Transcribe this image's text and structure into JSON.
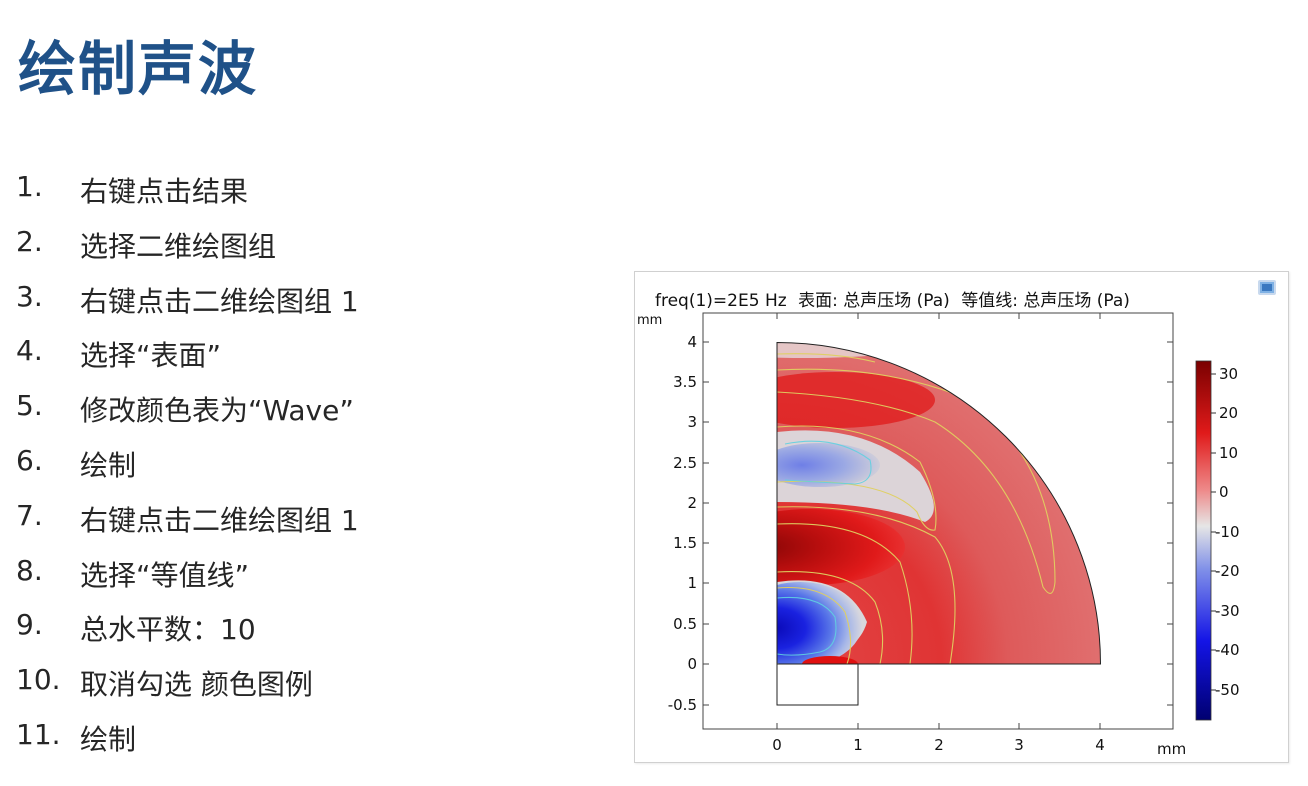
{
  "slide": {
    "title": "绘制声波",
    "steps": [
      {
        "num": "1.",
        "text": "右键点击结果"
      },
      {
        "num": "2.",
        "text": "选择二维绘图组"
      },
      {
        "num": "3.",
        "text": "右键点击二维绘图组 1"
      },
      {
        "num": "4.",
        "text": "选择“表面”"
      },
      {
        "num": "5.",
        "text": "修改颜色表为“Wave”"
      },
      {
        "num": "6.",
        "text": "绘制"
      },
      {
        "num": "7.",
        "text": "右键点击二维绘图组 1"
      },
      {
        "num": "8.",
        "text": "选择“等值线”"
      },
      {
        "num": "9.",
        "text": "总水平数：10"
      },
      {
        "num": "10.",
        "text": "取消勾选 颜色图例"
      },
      {
        "num": "11.",
        "text": "绘制"
      }
    ]
  },
  "figure": {
    "title_freq": "freq(1)=2E5 Hz",
    "title_surface": "表面: 总声压场 (Pa)",
    "title_contour": "等值线: 总声压场 (Pa)",
    "icon": "window-icon",
    "y_unit": "mm",
    "x_unit": "mm",
    "y_ticks": [
      "4",
      "3.5",
      "3",
      "2.5",
      "2",
      "1.5",
      "1",
      "0.5",
      "0",
      "-0.5"
    ],
    "x_ticks": [
      "0",
      "1",
      "2",
      "3",
      "4"
    ],
    "colorbar_ticks": [
      "30",
      "20",
      "10",
      "0",
      "-10",
      "-20",
      "-30",
      "-40",
      "-50"
    ],
    "colors": {
      "title": "#1f5188",
      "wave_red": "#d81818",
      "wave_white": "#dcdcdc",
      "wave_blue": "#1010d0"
    }
  }
}
